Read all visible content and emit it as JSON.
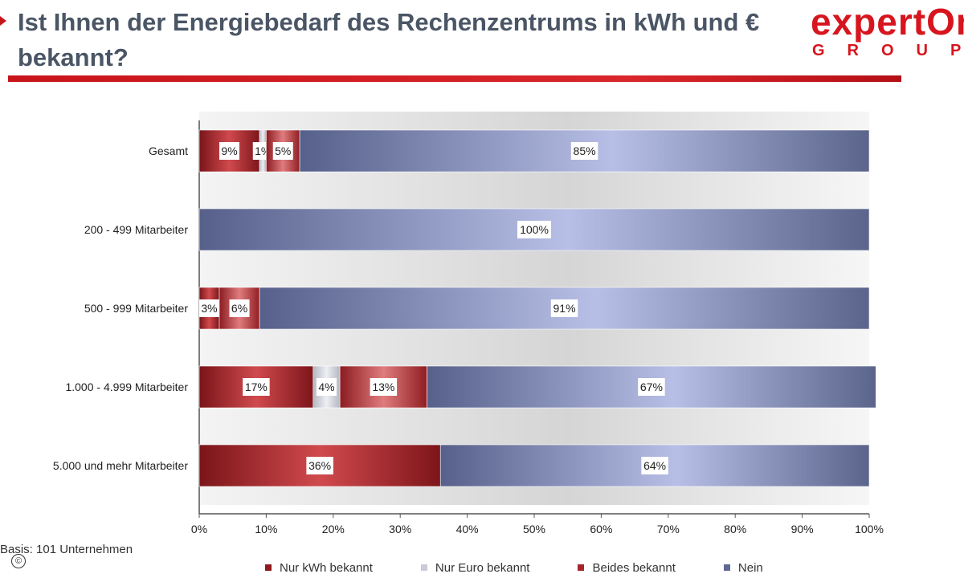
{
  "header": {
    "title": "Ist Ihnen der Energiebedarf des Rechenzentrums in kWh und € bekannt?",
    "logo_word": "expertOn",
    "logo_sub": "GROUP"
  },
  "footer": {
    "basis": "Basis: 101 Unternehmen",
    "copyright": "©"
  },
  "colors": {
    "nur_kwh": "#8e1a1f",
    "nur_euro": "#c9ccd6",
    "beides": "#a5252b",
    "nein": "#5f6a93",
    "accent": "#c8141b"
  },
  "chart_data": {
    "type": "bar",
    "orientation": "horizontal",
    "stacked": true,
    "categories": [
      "Gesamt",
      "200 - 499 Mitarbeiter",
      "500 - 999 Mitarbeiter",
      "1.000 - 4.999 Mitarbeiter",
      "5.000 und mehr Mitarbeiter"
    ],
    "series": [
      {
        "name": "Nur kWh bekannt",
        "values": [
          9,
          0,
          3,
          17,
          36
        ],
        "labels": [
          "9%",
          "",
          "3%",
          "17%",
          "36%"
        ]
      },
      {
        "name": "Nur Euro bekannt",
        "values": [
          1,
          0,
          0,
          4,
          0
        ],
        "labels": [
          "1%",
          "",
          "",
          "4%",
          ""
        ]
      },
      {
        "name": "Beides bekannt",
        "values": [
          5,
          0,
          6,
          13,
          0
        ],
        "labels": [
          "5%",
          "",
          "6%",
          "13%",
          ""
        ]
      },
      {
        "name": "Nein",
        "values": [
          85,
          100,
          91,
          67,
          64
        ],
        "labels": [
          "85%",
          "100%",
          "91%",
          "67%",
          "64%"
        ]
      }
    ],
    "xlim": [
      0,
      100
    ],
    "xticks": [
      "0%",
      "10%",
      "20%",
      "30%",
      "40%",
      "50%",
      "60%",
      "70%",
      "80%",
      "90%",
      "100%"
    ],
    "legend_position": "bottom",
    "grid": false
  }
}
